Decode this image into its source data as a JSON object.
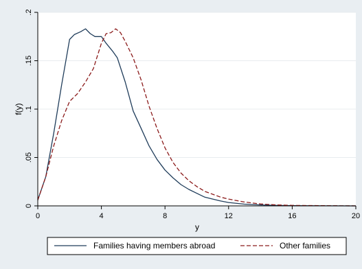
{
  "chart_data": {
    "type": "line",
    "xlabel": "y",
    "ylabel": "f(y)",
    "xlim": [
      0,
      20
    ],
    "ylim": [
      0,
      0.2
    ],
    "x_ticks": [
      0,
      4,
      8,
      12,
      16,
      20
    ],
    "x_tick_labels": [
      "0",
      "4",
      "8",
      "12",
      "16",
      "20"
    ],
    "y_ticks": [
      0,
      0.05,
      0.1,
      0.15,
      0.2
    ],
    "y_tick_labels": [
      "0",
      ".05",
      ".1",
      ".15",
      ".2"
    ],
    "grid": "horizontal",
    "legend_position": "bottom",
    "series": [
      {
        "name": "Families having members abroad",
        "color": "#1f3c5a",
        "style": "solid",
        "points": [
          [
            0,
            0.006
          ],
          [
            0.5,
            0.03
          ],
          [
            1,
            0.075
          ],
          [
            1.5,
            0.125
          ],
          [
            2,
            0.172
          ],
          [
            2.3,
            0.177
          ],
          [
            2.7,
            0.18
          ],
          [
            3.0,
            0.183
          ],
          [
            3.3,
            0.178
          ],
          [
            3.6,
            0.175
          ],
          [
            4.0,
            0.175
          ],
          [
            4.3,
            0.168
          ],
          [
            4.7,
            0.16
          ],
          [
            5.0,
            0.153
          ],
          [
            5.5,
            0.128
          ],
          [
            6,
            0.098
          ],
          [
            6.5,
            0.08
          ],
          [
            7,
            0.062
          ],
          [
            7.5,
            0.048
          ],
          [
            8,
            0.037
          ],
          [
            8.5,
            0.029
          ],
          [
            9,
            0.022
          ],
          [
            9.5,
            0.017
          ],
          [
            10,
            0.013
          ],
          [
            10.5,
            0.009
          ],
          [
            11,
            0.007
          ],
          [
            11.5,
            0.005
          ],
          [
            12,
            0.0035
          ],
          [
            13,
            0.0018
          ],
          [
            14,
            0.001
          ],
          [
            15,
            0.0005
          ],
          [
            16,
            0.0003
          ],
          [
            18,
            0.0001
          ],
          [
            20,
            0.0
          ]
        ]
      },
      {
        "name": "Other families",
        "color": "#8b1a1a",
        "style": "dashed",
        "points": [
          [
            0,
            0.006
          ],
          [
            0.5,
            0.03
          ],
          [
            1,
            0.062
          ],
          [
            1.5,
            0.088
          ],
          [
            2,
            0.108
          ],
          [
            2.5,
            0.116
          ],
          [
            3,
            0.128
          ],
          [
            3.5,
            0.142
          ],
          [
            4,
            0.168
          ],
          [
            4.3,
            0.178
          ],
          [
            4.6,
            0.179
          ],
          [
            4.9,
            0.183
          ],
          [
            5.2,
            0.179
          ],
          [
            5.5,
            0.17
          ],
          [
            6,
            0.153
          ],
          [
            6.5,
            0.13
          ],
          [
            7,
            0.103
          ],
          [
            7.5,
            0.08
          ],
          [
            8,
            0.06
          ],
          [
            8.5,
            0.045
          ],
          [
            9,
            0.034
          ],
          [
            9.5,
            0.026
          ],
          [
            10,
            0.02
          ],
          [
            10.5,
            0.015
          ],
          [
            11,
            0.012
          ],
          [
            11.5,
            0.009
          ],
          [
            12,
            0.007
          ],
          [
            13,
            0.004
          ],
          [
            14,
            0.002
          ],
          [
            15,
            0.001
          ],
          [
            16,
            0.0005
          ],
          [
            18,
            0.0002
          ],
          [
            20,
            0.0
          ]
        ]
      }
    ]
  }
}
